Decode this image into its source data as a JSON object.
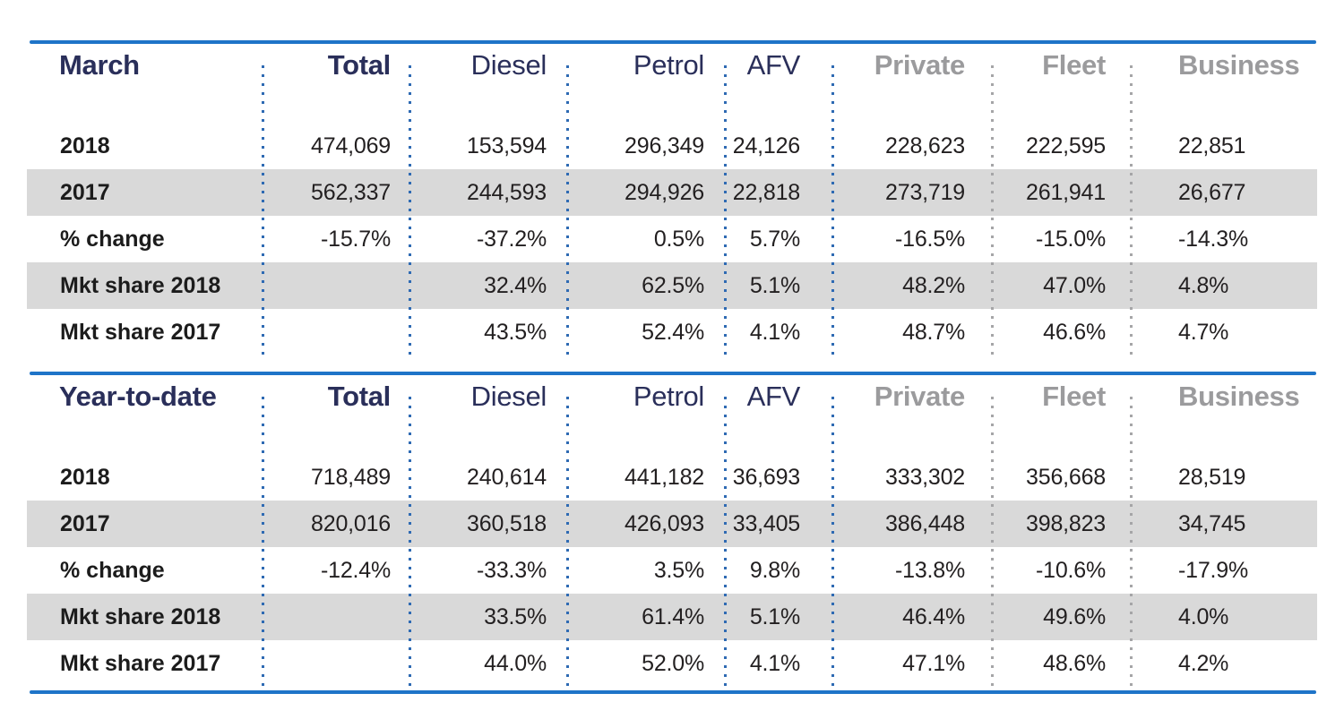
{
  "colors": {
    "accent_line": "#1e74c8",
    "navy_header": "#2a2f5a",
    "gray_header": "#9b9b9d",
    "row_stripe": "#d9d9d9",
    "blue_dots": "#2e6ab3",
    "gray_dots": "#a5a5a7",
    "value_text": "#221f20"
  },
  "chart_data": [
    {
      "type": "table",
      "title": "March",
      "columns": [
        "Total",
        "Diesel",
        "Petrol",
        "AFV",
        "Private",
        "Fleet",
        "Business"
      ],
      "rows": [
        {
          "label": "2018",
          "values": [
            "474,069",
            "153,594",
            "296,349",
            "24,126",
            "228,623",
            "222,595",
            "22,851"
          ]
        },
        {
          "label": "2017",
          "values": [
            "562,337",
            "244,593",
            "294,926",
            "22,818",
            "273,719",
            "261,941",
            "26,677"
          ]
        },
        {
          "label": "% change",
          "values": [
            "-15.7%",
            "-37.2%",
            "0.5%",
            "5.7%",
            "-16.5%",
            "-15.0%",
            "-14.3%"
          ]
        },
        {
          "label": "Mkt share 2018",
          "values": [
            "",
            "32.4%",
            "62.5%",
            "5.1%",
            "48.2%",
            "47.0%",
            "4.8%"
          ]
        },
        {
          "label": "Mkt share 2017",
          "values": [
            "",
            "43.5%",
            "52.4%",
            "4.1%",
            "48.7%",
            "46.6%",
            "4.7%"
          ]
        }
      ]
    },
    {
      "type": "table",
      "title": "Year-to-date",
      "columns": [
        "Total",
        "Diesel",
        "Petrol",
        "AFV",
        "Private",
        "Fleet",
        "Business"
      ],
      "rows": [
        {
          "label": "2018",
          "values": [
            "718,489",
            "240,614",
            "441,182",
            "36,693",
            "333,302",
            "356,668",
            "28,519"
          ]
        },
        {
          "label": "2017",
          "values": [
            "820,016",
            "360,518",
            "426,093",
            "33,405",
            "386,448",
            "398,823",
            "34,745"
          ]
        },
        {
          "label": "% change",
          "values": [
            "-12.4%",
            "-33.3%",
            "3.5%",
            "9.8%",
            "-13.8%",
            "-10.6%",
            "-17.9%"
          ]
        },
        {
          "label": "Mkt share 2018",
          "values": [
            "",
            "33.5%",
            "61.4%",
            "5.1%",
            "46.4%",
            "49.6%",
            "4.0%"
          ]
        },
        {
          "label": "Mkt share 2017",
          "values": [
            "",
            "44.0%",
            "52.0%",
            "4.1%",
            "47.1%",
            "48.6%",
            "4.2%"
          ]
        }
      ]
    }
  ]
}
